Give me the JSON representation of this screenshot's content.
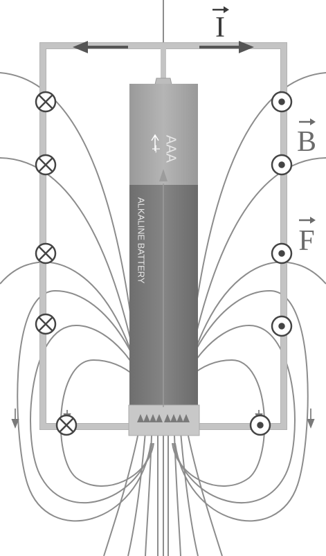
{
  "labels": {
    "current": "I",
    "magnetic_field": "B",
    "force": "F"
  },
  "battery": {
    "size_label": "AAA",
    "polarity_label": "+",
    "type_label": "ALKALINE BATTERY"
  },
  "colors": {
    "wire": "#c4c4c4",
    "wire_edge": "#a8a8a8",
    "field_line": "#8a8a8a",
    "battery_cap": "#a9a9a9",
    "battery_body": "#7d7d7d",
    "arrow": "#555555",
    "symbol": "#444444"
  },
  "symbols": {
    "into_page": "current-into-page-symbol",
    "out_of_page": "current-out-of-page-symbol"
  }
}
